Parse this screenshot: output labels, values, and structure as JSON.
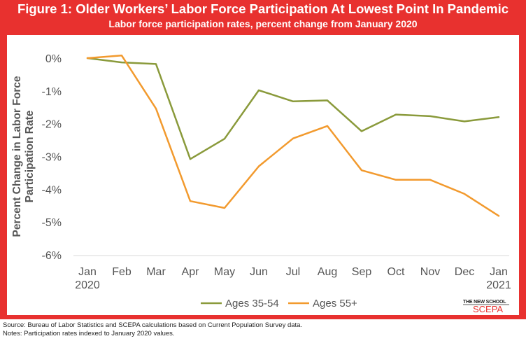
{
  "header": {
    "title": "Figure 1: Older Workers’ Labor Force Participation At Lowest Point In Pandemic",
    "subtitle": "Labor force participation rates, percent change from January 2020"
  },
  "chart_data": {
    "type": "line",
    "title": "Figure 1: Older Workers’ Labor Force Participation At Lowest Point In Pandemic",
    "subtitle": "Labor force participation rates, percent change from January 2020",
    "ylabel": "Percent Change in Labor Force Participation Rate",
    "xlabel": "",
    "categories": [
      "Jan 2020",
      "Feb",
      "Mar",
      "Apr",
      "May",
      "Jun",
      "Jul",
      "Aug",
      "Sep",
      "Oct",
      "Nov",
      "Dec",
      "Jan 2021"
    ],
    "x_tick_labels": [
      [
        "Jan",
        "2020"
      ],
      [
        "Feb"
      ],
      [
        "Mar"
      ],
      [
        "Apr"
      ],
      [
        "May"
      ],
      [
        "Jun"
      ],
      [
        "Jul"
      ],
      [
        "Aug"
      ],
      [
        "Sep"
      ],
      [
        "Oct"
      ],
      [
        "Nov"
      ],
      [
        "Dec"
      ],
      [
        "Jan",
        "2021"
      ]
    ],
    "y_ticks": [
      0,
      -1,
      -2,
      -3,
      -4,
      -5,
      -6
    ],
    "y_tick_labels": [
      "0%",
      "-1%",
      "-2%",
      "-3%",
      "-4%",
      "-5%",
      "-6%"
    ],
    "ylim": [
      -6,
      0
    ],
    "grid": false,
    "legend_position": "bottom",
    "series": [
      {
        "name": "Ages 35-54",
        "color": "#8a9a3b",
        "values": [
          0.0,
          -0.13,
          -0.18,
          -3.08,
          -2.46,
          -0.98,
          -1.32,
          -1.29,
          -2.23,
          -1.72,
          -1.77,
          -1.93,
          -1.8
        ]
      },
      {
        "name": "Ages 55+",
        "color": "#f29a2e",
        "values": [
          0.0,
          0.08,
          -1.54,
          -4.36,
          -4.57,
          -3.3,
          -2.45,
          -2.07,
          -3.42,
          -3.71,
          -3.71,
          -4.14,
          -4.81
        ]
      }
    ]
  },
  "logo": {
    "top": "THE NEW SCHOOL",
    "main": "SCEPA"
  },
  "footer": {
    "source": "Source: Bureau of Labor Statistics and SCEPA calculations based on Current Population Survey data.",
    "notes": "Notes: Participation rates indexed to January 2020 values."
  }
}
